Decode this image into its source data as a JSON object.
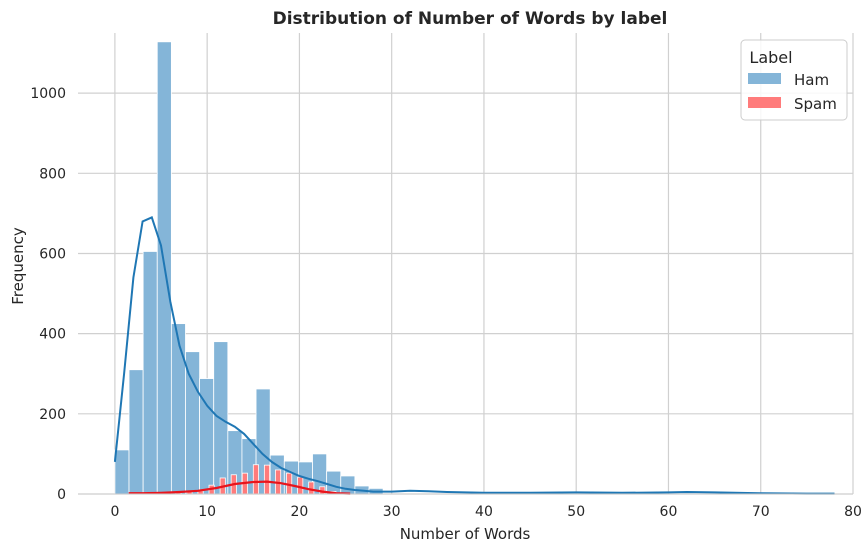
{
  "chart_data": {
    "type": "histogram",
    "title": "Distribution of Number of Words by label",
    "xlabel": "Number of Words",
    "ylabel": "Frequency",
    "xlim": [
      -4,
      80
    ],
    "ylim": [
      0,
      1150
    ],
    "xticks": [
      0,
      10,
      20,
      30,
      40,
      50,
      60,
      70,
      80
    ],
    "yticks": [
      0,
      200,
      400,
      600,
      800,
      1000
    ],
    "grid": true,
    "legend": {
      "title": "Label",
      "placement": "top-right"
    },
    "colors": {
      "ham_bar": "#84b5d8",
      "ham_line": "#1f77b4",
      "spam_bar": "#ff7b7b",
      "spam_line": "#e8141c",
      "grid": "#d0d0d0"
    },
    "series": [
      {
        "name": "Ham",
        "bin_width": 1.53,
        "bins": [
          {
            "x0": 0.0,
            "value": 110
          },
          {
            "x0": 1.53,
            "value": 310
          },
          {
            "x0": 3.06,
            "value": 605
          },
          {
            "x0": 4.59,
            "value": 1128
          },
          {
            "x0": 6.12,
            "value": 425
          },
          {
            "x0": 7.65,
            "value": 355
          },
          {
            "x0": 9.18,
            "value": 288
          },
          {
            "x0": 10.71,
            "value": 380
          },
          {
            "x0": 12.24,
            "value": 158
          },
          {
            "x0": 13.77,
            "value": 138
          },
          {
            "x0": 15.3,
            "value": 262
          },
          {
            "x0": 16.83,
            "value": 97
          },
          {
            "x0": 18.36,
            "value": 82
          },
          {
            "x0": 19.89,
            "value": 80
          },
          {
            "x0": 21.42,
            "value": 100
          },
          {
            "x0": 22.95,
            "value": 57
          },
          {
            "x0": 24.48,
            "value": 45
          },
          {
            "x0": 26.01,
            "value": 20
          },
          {
            "x0": 27.54,
            "value": 14
          }
        ],
        "kde": [
          [
            0,
            80
          ],
          [
            1,
            300
          ],
          [
            2,
            540
          ],
          [
            3,
            680
          ],
          [
            4,
            690
          ],
          [
            5,
            620
          ],
          [
            6,
            480
          ],
          [
            7,
            370
          ],
          [
            8,
            300
          ],
          [
            9,
            255
          ],
          [
            10,
            220
          ],
          [
            11,
            195
          ],
          [
            12,
            180
          ],
          [
            13,
            168
          ],
          [
            14,
            150
          ],
          [
            15,
            125
          ],
          [
            16,
            100
          ],
          [
            17,
            80
          ],
          [
            18,
            65
          ],
          [
            19,
            55
          ],
          [
            20,
            45
          ],
          [
            21,
            38
          ],
          [
            22,
            32
          ],
          [
            23,
            25
          ],
          [
            24,
            18
          ],
          [
            25,
            13
          ],
          [
            26,
            10
          ],
          [
            27,
            8
          ],
          [
            28,
            6
          ],
          [
            30,
            6
          ],
          [
            32,
            8
          ],
          [
            34,
            7
          ],
          [
            36,
            5
          ],
          [
            40,
            3
          ],
          [
            45,
            3
          ],
          [
            50,
            4
          ],
          [
            55,
            3
          ],
          [
            60,
            4
          ],
          [
            62,
            5
          ],
          [
            65,
            4
          ],
          [
            70,
            2
          ],
          [
            75,
            1
          ],
          [
            78,
            1
          ]
        ]
      },
      {
        "name": "Spam",
        "bin_width": 0.57,
        "bins": [
          {
            "x0": 1.8,
            "value": 2
          },
          {
            "x0": 3.0,
            "value": 3
          },
          {
            "x0": 4.2,
            "value": 4
          },
          {
            "x0": 5.4,
            "value": 3
          },
          {
            "x0": 6.6,
            "value": 5
          },
          {
            "x0": 7.8,
            "value": 6
          },
          {
            "x0": 9.0,
            "value": 8
          },
          {
            "x0": 10.2,
            "value": 22
          },
          {
            "x0": 11.4,
            "value": 40
          },
          {
            "x0": 12.6,
            "value": 48
          },
          {
            "x0": 13.8,
            "value": 52
          },
          {
            "x0": 15.0,
            "value": 73
          },
          {
            "x0": 16.2,
            "value": 72
          },
          {
            "x0": 17.4,
            "value": 60
          },
          {
            "x0": 18.6,
            "value": 52
          },
          {
            "x0": 19.8,
            "value": 42
          },
          {
            "x0": 21.0,
            "value": 30
          },
          {
            "x0": 22.2,
            "value": 18
          },
          {
            "x0": 23.4,
            "value": 6
          }
        ],
        "kde": [
          [
            1.5,
            2
          ],
          [
            3,
            2
          ],
          [
            5,
            3
          ],
          [
            7,
            5
          ],
          [
            9,
            8
          ],
          [
            11,
            15
          ],
          [
            13,
            25
          ],
          [
            15,
            30
          ],
          [
            16.5,
            31
          ],
          [
            18,
            27
          ],
          [
            19.5,
            20
          ],
          [
            21,
            12
          ],
          [
            22.5,
            6
          ],
          [
            24,
            2
          ],
          [
            25.5,
            1
          ]
        ]
      }
    ]
  }
}
